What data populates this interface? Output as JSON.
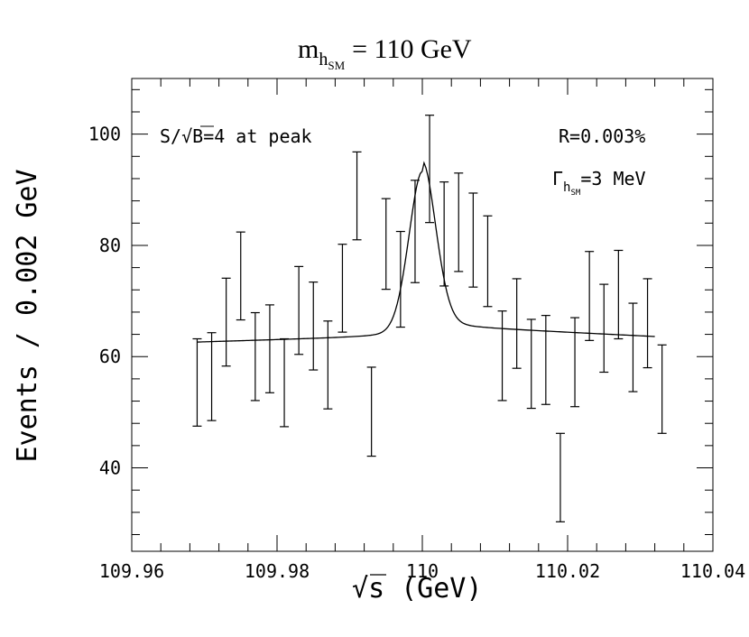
{
  "chart_data": {
    "type": "scatter",
    "title": {
      "main": "m",
      "sub": "h",
      "subsub": "SM",
      "rest": "= 110 GeV"
    },
    "xlabel": {
      "sqrt": "√",
      "overbar": "s",
      "rest": "(GeV)"
    },
    "ylabel": "Events / 0.002 GeV",
    "xlim": [
      109.96,
      110.04
    ],
    "ylim": [
      25,
      110
    ],
    "x_ticks": [
      {
        "value": 109.96,
        "label": "109.96"
      },
      {
        "value": 109.98,
        "label": "109.98"
      },
      {
        "value": 110.0,
        "label": "110"
      },
      {
        "value": 110.02,
        "label": "110.02"
      },
      {
        "value": 110.04,
        "label": "110.04"
      }
    ],
    "y_ticks": [
      {
        "value": 40,
        "label": "40"
      },
      {
        "value": 60,
        "label": "60"
      },
      {
        "value": 80,
        "label": "80"
      },
      {
        "value": 100,
        "label": "100"
      }
    ],
    "annotations": {
      "significance": {
        "pre": "S/",
        "sqrt": "√",
        "overbar": "B",
        "post": "=4 at peak"
      },
      "resolution": "R=0.003%",
      "width": {
        "gamma": "Γ",
        "sub": "h",
        "subsub": "SM",
        "post": "=3 MeV"
      }
    },
    "series": [
      {
        "name": "data",
        "type": "errorbar",
        "points": [
          {
            "x": 109.969,
            "low": 47.5,
            "high": 63.2
          },
          {
            "x": 109.971,
            "low": 48.5,
            "high": 64.3
          },
          {
            "x": 109.973,
            "low": 58.3,
            "high": 74.1
          },
          {
            "x": 109.975,
            "low": 66.6,
            "high": 82.4
          },
          {
            "x": 109.977,
            "low": 52.1,
            "high": 67.9
          },
          {
            "x": 109.979,
            "low": 53.5,
            "high": 69.3
          },
          {
            "x": 109.981,
            "low": 47.4,
            "high": 63.2
          },
          {
            "x": 109.983,
            "low": 60.4,
            "high": 76.2
          },
          {
            "x": 109.985,
            "low": 57.6,
            "high": 73.4
          },
          {
            "x": 109.987,
            "low": 50.6,
            "high": 66.4
          },
          {
            "x": 109.989,
            "low": 64.4,
            "high": 80.2
          },
          {
            "x": 109.991,
            "low": 81.0,
            "high": 96.8
          },
          {
            "x": 109.993,
            "low": 42.1,
            "high": 58.1
          },
          {
            "x": 109.995,
            "low": 72.1,
            "high": 88.4
          },
          {
            "x": 109.997,
            "low": 65.3,
            "high": 82.5
          },
          {
            "x": 109.999,
            "low": 73.3,
            "high": 91.7
          },
          {
            "x": 110.001,
            "low": 84.1,
            "high": 103.4
          },
          {
            "x": 110.003,
            "low": 72.7,
            "high": 91.4
          },
          {
            "x": 110.005,
            "low": 75.3,
            "high": 93.0
          },
          {
            "x": 110.007,
            "low": 72.5,
            "high": 89.4
          },
          {
            "x": 110.009,
            "low": 69.0,
            "high": 85.3
          },
          {
            "x": 110.011,
            "low": 52.1,
            "high": 68.2
          },
          {
            "x": 110.013,
            "low": 57.9,
            "high": 74.0
          },
          {
            "x": 110.015,
            "low": 50.7,
            "high": 66.7
          },
          {
            "x": 110.017,
            "low": 51.4,
            "high": 67.4
          },
          {
            "x": 110.019,
            "low": 30.3,
            "high": 46.2
          },
          {
            "x": 110.021,
            "low": 51.0,
            "high": 67.0
          },
          {
            "x": 110.023,
            "low": 62.9,
            "high": 78.9
          },
          {
            "x": 110.025,
            "low": 57.2,
            "high": 73.0
          },
          {
            "x": 110.027,
            "low": 63.2,
            "high": 79.1
          },
          {
            "x": 110.029,
            "low": 53.7,
            "high": 69.6
          },
          {
            "x": 110.031,
            "low": 58.0,
            "high": 74.0
          },
          {
            "x": 110.033,
            "low": 46.2,
            "high": 62.1
          }
        ]
      },
      {
        "name": "fit",
        "type": "line",
        "x_range": [
          109.969,
          110.032
        ],
        "peak_x": 110.0,
        "peak_y": 94.2,
        "left_baseline": [
          62.6,
          63.8
        ],
        "right_baseline": [
          65.6,
          63.6
        ]
      }
    ]
  }
}
